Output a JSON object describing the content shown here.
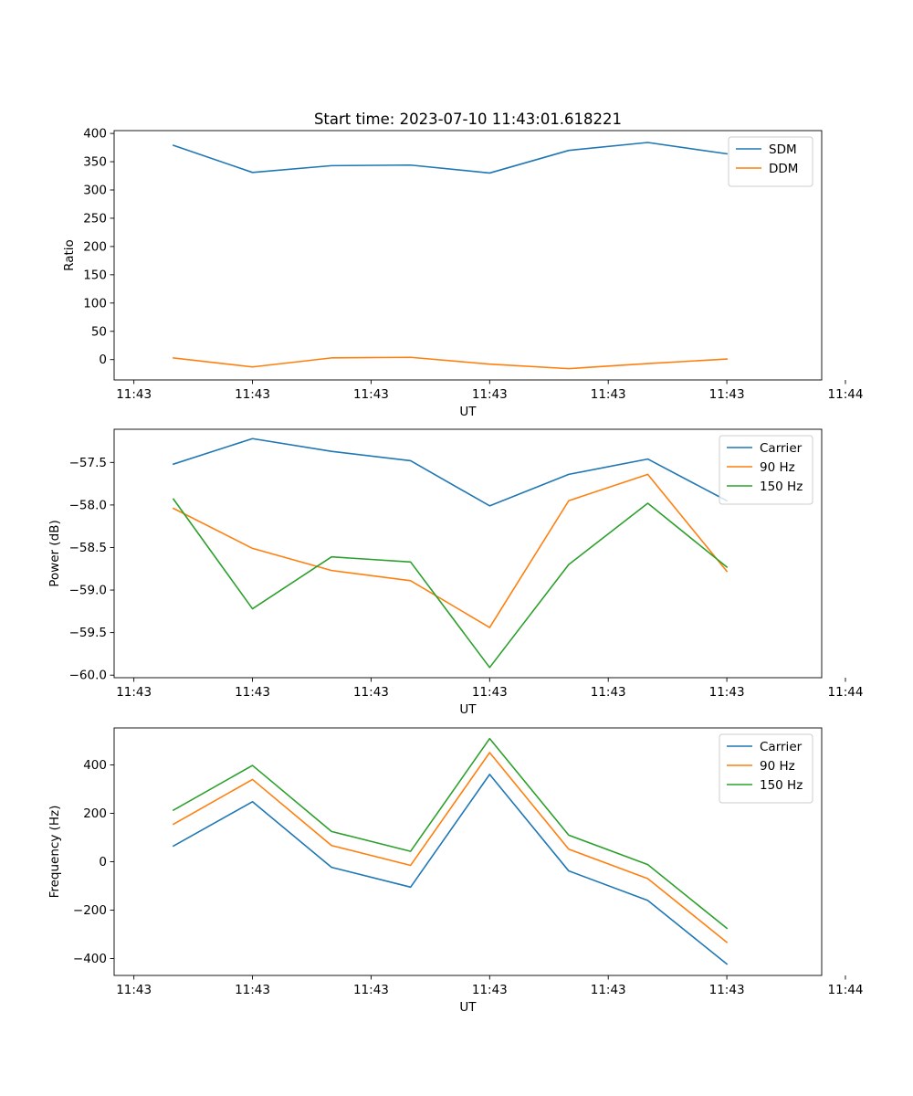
{
  "title": "Start time: 2023-07-10 11:43:01.618221",
  "colors": {
    "blue": "#1f77b4",
    "orange": "#ff7f0e",
    "green": "#2ca02c"
  },
  "chart_data": [
    {
      "type": "line",
      "title": "Start time: 2023-07-10 11:43:01.618221",
      "xlabel": "UT",
      "ylabel": "Ratio",
      "x": [
        1,
        2,
        3,
        4,
        5,
        6,
        7,
        8
      ],
      "xlim": [
        0.25,
        9.2
      ],
      "x_ticks": [
        0.5,
        2.0,
        3.5,
        5.0,
        6.5,
        8.0,
        9.5
      ],
      "x_tick_labels": [
        "11:43",
        "11:43",
        "11:43",
        "11:43",
        "11:43",
        "11:43",
        "11:44"
      ],
      "ylim": [
        -36,
        405
      ],
      "y_ticks": [
        0,
        50,
        100,
        150,
        200,
        250,
        300,
        350,
        400
      ],
      "y_tick_labels": [
        "0",
        "50",
        "100",
        "150",
        "200",
        "250",
        "300",
        "350",
        "400"
      ],
      "legend_position": "top-right",
      "series": [
        {
          "name": "SDM",
          "color": "#1f77b4",
          "values": [
            379,
            331,
            343,
            344,
            330,
            370,
            384,
            364
          ]
        },
        {
          "name": "DDM",
          "color": "#ff7f0e",
          "values": [
            3,
            -13,
            3,
            4,
            -8,
            -16,
            -7,
            1
          ]
        }
      ]
    },
    {
      "type": "line",
      "xlabel": "UT",
      "ylabel": "Power (dB)",
      "x": [
        1,
        2,
        3,
        4,
        5,
        6,
        7,
        8
      ],
      "xlim": [
        0.25,
        9.2
      ],
      "x_ticks": [
        0.5,
        2.0,
        3.5,
        5.0,
        6.5,
        8.0,
        9.5
      ],
      "x_tick_labels": [
        "11:43",
        "11:43",
        "11:43",
        "11:43",
        "11:43",
        "11:43",
        "11:44"
      ],
      "ylim": [
        -60.03,
        -57.11
      ],
      "y_ticks": [
        -60.0,
        -59.5,
        -59.0,
        -58.5,
        -58.0,
        -57.5
      ],
      "y_tick_labels": [
        "−60.0",
        "−59.5",
        "−59.0",
        "−58.5",
        "−58.0",
        "−57.5"
      ],
      "legend_position": "top-right",
      "series": [
        {
          "name": "Carrier",
          "color": "#1f77b4",
          "values": [
            -57.52,
            -57.22,
            -57.37,
            -57.48,
            -58.01,
            -57.64,
            -57.46,
            -57.95
          ]
        },
        {
          "name": "90 Hz",
          "color": "#ff7f0e",
          "values": [
            -58.04,
            -58.51,
            -58.77,
            -58.89,
            -59.44,
            -57.95,
            -57.64,
            -58.78
          ]
        },
        {
          "name": "150 Hz",
          "color": "#2ca02c",
          "values": [
            -57.93,
            -59.22,
            -58.61,
            -58.67,
            -59.91,
            -58.7,
            -57.98,
            -58.73
          ]
        }
      ]
    },
    {
      "type": "line",
      "xlabel": "UT",
      "ylabel": "Frequency (Hz)",
      "x": [
        1,
        2,
        3,
        4,
        5,
        6,
        7,
        8
      ],
      "xlim": [
        0.25,
        9.2
      ],
      "x_ticks": [
        0.5,
        2.0,
        3.5,
        5.0,
        6.5,
        8.0,
        9.5
      ],
      "x_tick_labels": [
        "11:43",
        "11:43",
        "11:43",
        "11:43",
        "11:43",
        "11:43",
        "11:44"
      ],
      "ylim": [
        -470,
        553
      ],
      "y_ticks": [
        -400,
        -200,
        0,
        200,
        400
      ],
      "y_tick_labels": [
        "−400",
        "−200",
        "0",
        "200",
        "400"
      ],
      "legend_position": "top-right",
      "series": [
        {
          "name": "Carrier",
          "color": "#1f77b4",
          "values": [
            65,
            248,
            -23,
            -105,
            361,
            -38,
            -160,
            -423
          ]
        },
        {
          "name": "90 Hz",
          "color": "#ff7f0e",
          "values": [
            155,
            340,
            67,
            -15,
            451,
            52,
            -70,
            -333
          ]
        },
        {
          "name": "150 Hz",
          "color": "#2ca02c",
          "values": [
            213,
            398,
            125,
            43,
            509,
            110,
            -12,
            -275
          ]
        }
      ]
    }
  ]
}
